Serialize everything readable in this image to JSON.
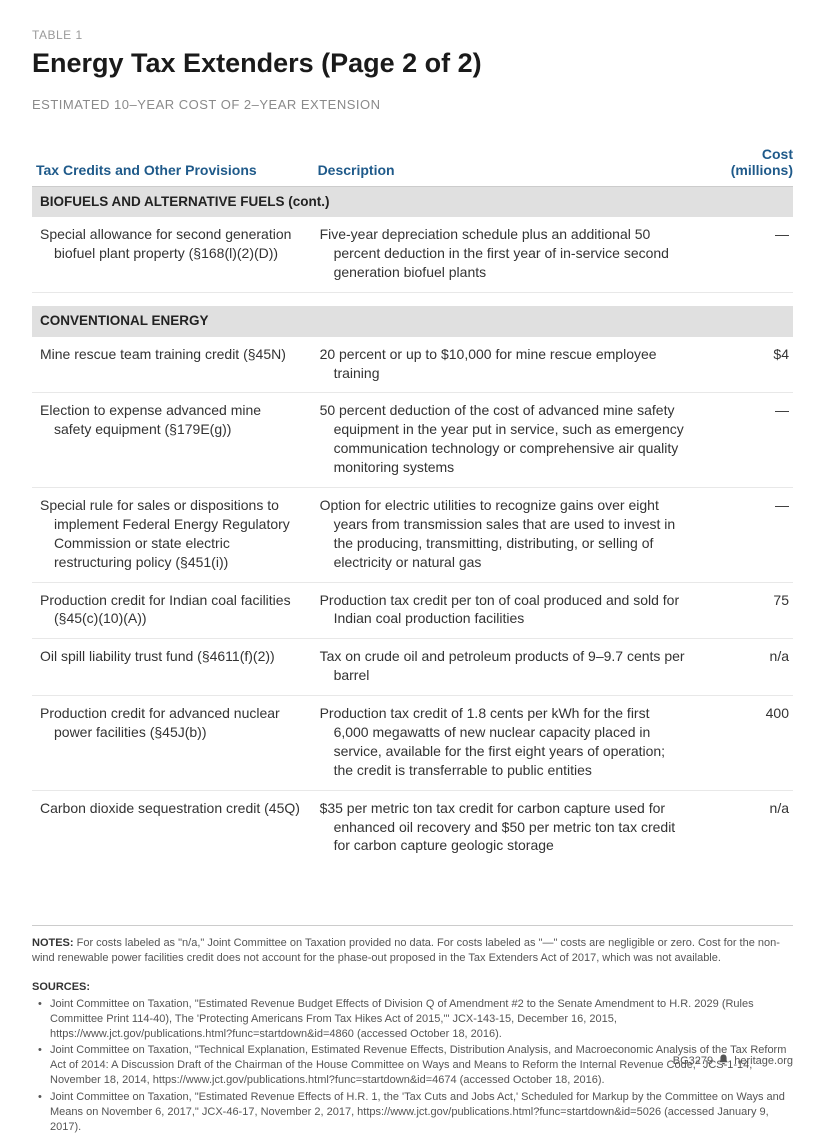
{
  "header": {
    "table_label": "TABLE 1",
    "title": "Energy Tax Extenders (Page 2 of 2)",
    "subtitle": "ESTIMATED 10–YEAR COST OF 2–YEAR EXTENSION"
  },
  "columns": {
    "c1": "Tax Credits and Other Provisions",
    "c2": "Description",
    "c3_l1": "Cost",
    "c3_l2": "(millions)"
  },
  "sections": [
    {
      "name": "BIOFUELS AND ALTERNATIVE FUELS (cont.)",
      "rows": [
        {
          "provision": "Special allowance for second generation biofuel plant property (§168(l)(2)(D))",
          "description": "Five-year depreciation schedule plus an additional 50 percent deduction in the first year of in-service second generation biofuel plants",
          "cost": "—"
        }
      ]
    },
    {
      "name": "CONVENTIONAL ENERGY",
      "rows": [
        {
          "provision": "Mine rescue team training credit (§45N)",
          "description": "20 percent or up to $10,000 for mine rescue employee training",
          "cost": "$4"
        },
        {
          "provision": "Election to expense advanced mine safety equipment (§179E(g))",
          "description": "50 percent deduction of the cost of advanced mine safety equipment in the year put in service, such as emergency communication technology or comprehensive air quality monitoring systems",
          "cost": "—"
        },
        {
          "provision": "Special rule for sales or dispositions to implement Federal Energy Regulatory Commission or state electric restructuring policy (§451(i))",
          "description": "Option for electric utilities to recognize gains over eight years from transmission sales that are used to invest in the producing, transmitting, distributing, or selling of electricity or natural gas",
          "cost": "—"
        },
        {
          "provision": "Production credit for Indian coal facilities (§45(c)(10)(A))",
          "description": "Production tax credit per ton of coal produced and sold for Indian coal production facilities",
          "cost": "75"
        },
        {
          "provision": "Oil spill liability trust fund (§4611(f)(2))",
          "description": "Tax on crude oil and petroleum products of 9–9.7 cents per barrel",
          "cost": "n/a"
        },
        {
          "provision": "Production credit for advanced nuclear power facilities (§45J(b))",
          "description": "Production tax credit of 1.8 cents per kWh for the first 6,000 megawatts of new nuclear capacity placed in service, available for the first eight years of operation; the credit is transferrable to public entities",
          "cost": "400"
        },
        {
          "provision": "Carbon dioxide sequestration credit (45Q)",
          "description": "$35 per metric ton tax credit for carbon capture used for enhanced oil recovery and $50 per metric ton tax credit for carbon capture geologic storage",
          "cost": "n/a"
        }
      ]
    }
  ],
  "notes": {
    "label": "NOTES:",
    "text": "For costs labeled as \"n/a,\" Joint Committee on Taxation provided no data. For costs labeled as \"—\" costs are negligible or zero. Cost for the non-wind renewable power facilities credit does not account for the phase-out proposed in the Tax Extenders Act of 2017, which was not available."
  },
  "sources": {
    "label": "SOURCES:",
    "items": [
      "Joint Committee on Taxation, \"Estimated Revenue Budget Effects of Division Q of Amendment #2 to the Senate Amendment to H.R. 2029 (Rules Committee Print 114-40), The 'Protecting Americans From Tax Hikes Act of 2015,'\" JCX-143-15, December 16, 2015, https://www.jct.gov/publications.html?func=startdown&id=4860 (accessed October 18, 2016).",
      "Joint Committee on Taxation, \"Technical Explanation, Estimated Revenue Effects, Distribution Analysis, and Macroeconomic Analysis of the Tax Reform Act of 2014: A Discussion Draft of the Chairman of the House Committee on Ways and Means to Reform the Internal Revenue Code,\" JCS-1-14, November 18, 2014, https://www.jct.gov/publications.html?func=startdown&id=4674 (accessed October 18, 2016).",
      "Joint Committee on Taxation, \"Estimated Revenue Effects of H.R. 1, the 'Tax Cuts and Jobs Act,' Scheduled for Markup by the Committee on Ways and Means on November 6, 2017,\" JCX-46-17, November 2, 2017, https://www.jct.gov/publications.html?func=startdown&id=5026 (accessed January 9, 2017)."
    ]
  },
  "footer": {
    "code": "BG3279",
    "site": "heritage.org"
  },
  "colors": {
    "header_blue": "#1f5a8a",
    "section_bg": "#e0e0e0",
    "rule": "#cccccc",
    "text": "#333333",
    "muted": "#8a8a8a"
  }
}
